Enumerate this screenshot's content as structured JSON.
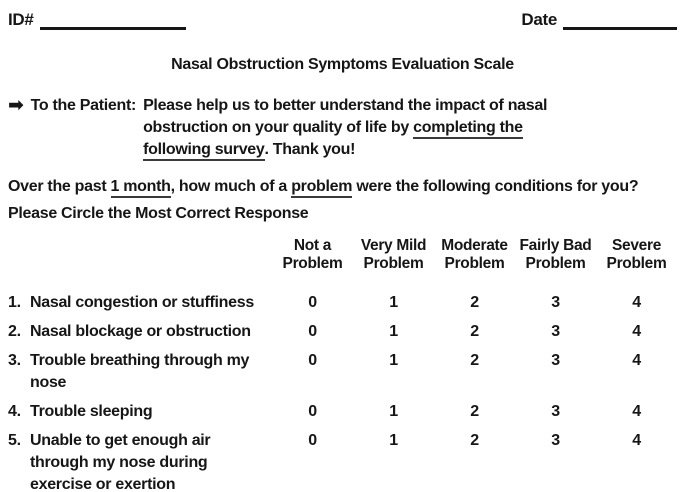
{
  "colors": {
    "text": "#161616",
    "background": "#ffffff",
    "rule": "#161616"
  },
  "header": {
    "id_label": "ID#",
    "date_label": "Date"
  },
  "title": "Nasal Obstruction Symptoms Evaluation Scale",
  "patient_note": {
    "arrow_icon": "➡",
    "label": "To the Patient:",
    "line1": "Please help us to better understand the impact of nasal",
    "line2_pre": "obstruction on your quality of life by ",
    "line2_underlined": "completing the",
    "line3_underlined": "following survey",
    "line3_post": ". Thank you!"
  },
  "question": {
    "pre": "Over the past ",
    "underlined1": "1 month",
    "mid": ", how much of a ",
    "underlined2": "problem",
    "post": " were the following conditions for you?"
  },
  "instruction": "Please Circle the Most Correct Response",
  "table": {
    "columns": [
      "Not a\nProblem",
      "Very Mild\nProblem",
      "Moderate\nProblem",
      "Fairly Bad\nProblem",
      "Severe\nProblem"
    ],
    "rows": [
      {
        "num": "1.",
        "text": "Nasal congestion or stuffiness",
        "values": [
          "0",
          "1",
          "2",
          "3",
          "4"
        ]
      },
      {
        "num": "2.",
        "text": "Nasal blockage or obstruction",
        "values": [
          "0",
          "1",
          "2",
          "3",
          "4"
        ]
      },
      {
        "num": "3.",
        "text": "Trouble breathing through my\nnose",
        "values": [
          "0",
          "1",
          "2",
          "3",
          "4"
        ]
      },
      {
        "num": "4.",
        "text": "Trouble sleeping",
        "values": [
          "0",
          "1",
          "2",
          "3",
          "4"
        ]
      },
      {
        "num": "5.",
        "text": "Unable to get enough air\nthrough my nose during\nexercise or exertion",
        "values": [
          "0",
          "1",
          "2",
          "3",
          "4"
        ]
      }
    ]
  }
}
